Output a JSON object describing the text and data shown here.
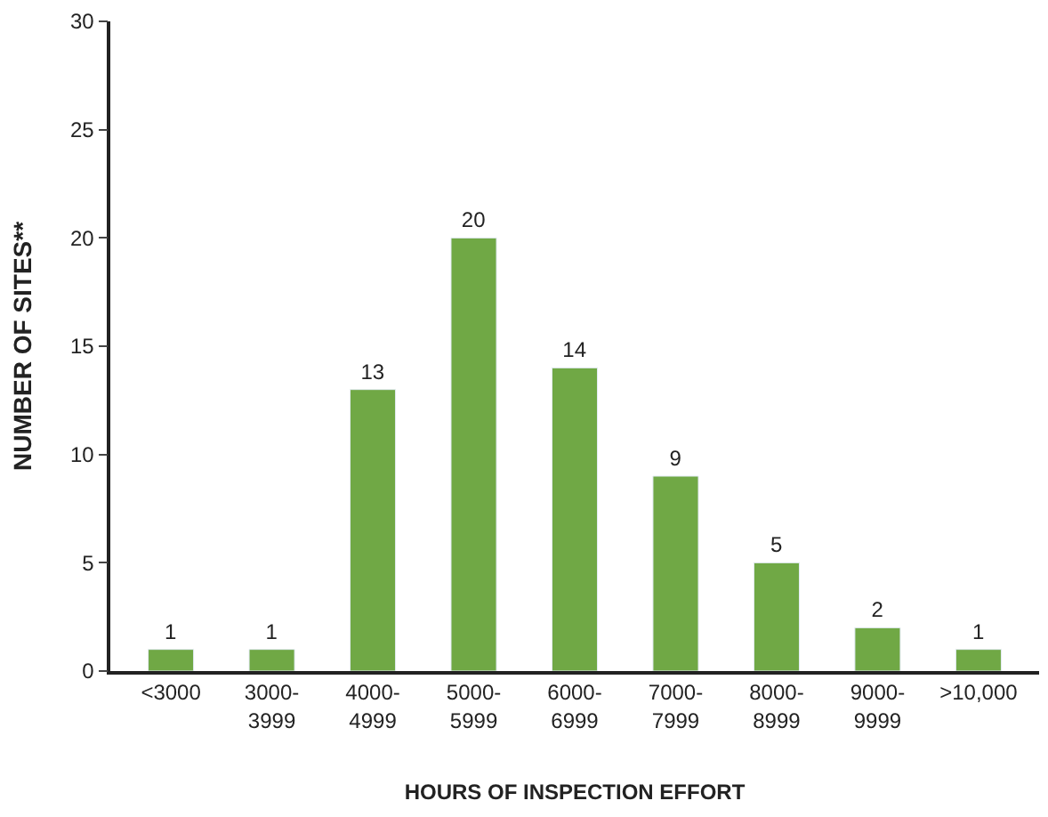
{
  "chart_data": {
    "type": "bar",
    "xlabel": "HOURS OF INSPECTION EFFORT",
    "ylabel": "NUMBER OF SITES**",
    "categories": [
      "<3000",
      "3000-3999",
      "4000-4999",
      "5000-5999",
      "6000-6999",
      "7000-7999",
      "8000-8999",
      "9000-9999",
      ">10,000"
    ],
    "values": [
      1,
      1,
      13,
      20,
      14,
      9,
      5,
      2,
      1
    ],
    "color": "#70a845",
    "ylim": [
      0,
      30
    ],
    "yticks": [
      0,
      5,
      10,
      15,
      20,
      25,
      30
    ],
    "data_labels": true
  }
}
